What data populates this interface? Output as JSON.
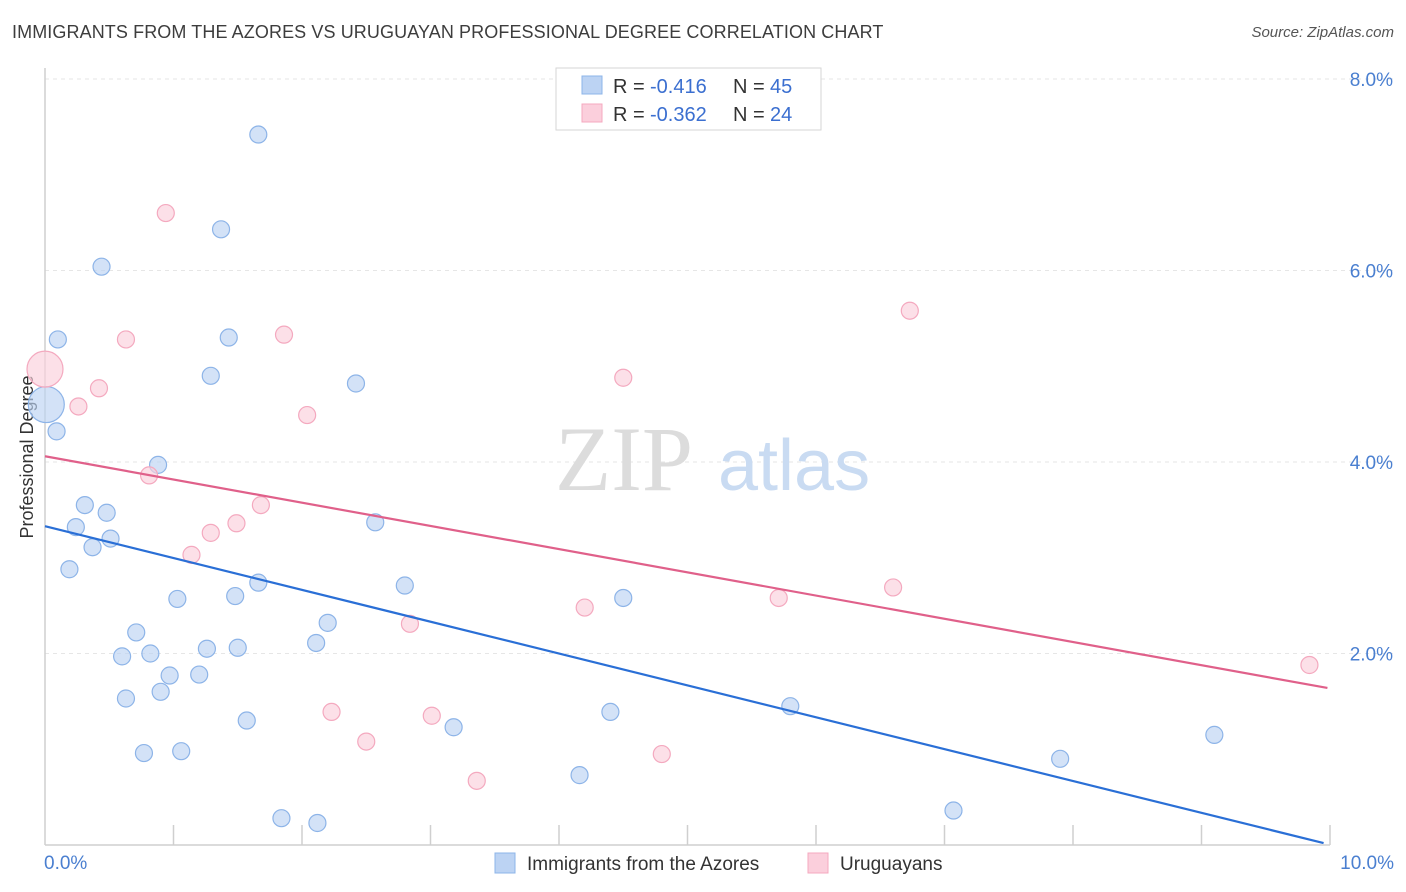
{
  "title": "IMMIGRANTS FROM THE AZORES VS URUGUAYAN PROFESSIONAL DEGREE CORRELATION CHART",
  "source": "Source: ZipAtlas.com",
  "watermark": {
    "zip": "ZIP",
    "atlas": "atlas"
  },
  "chart_data": {
    "type": "scatter",
    "ylabel": "Professional Degree",
    "xlim": [
      0,
      10
    ],
    "ylim": [
      0,
      8
    ],
    "x_tick_labels": [
      "0.0%",
      "10.0%"
    ],
    "y_tick_labels": [
      "2.0%",
      "4.0%",
      "6.0%",
      "8.0%"
    ],
    "y_ticks": [
      2,
      4,
      6,
      8
    ],
    "grid": true,
    "legend_position": "top-center",
    "series": [
      {
        "name": "Immigrants from the Azores",
        "color": "#8db4e8",
        "line_color": "#2a6fd6",
        "r_label": "R =",
        "r_value": "-0.416",
        "n_label": "N =",
        "n_value": "45",
        "trend": {
          "x": [
            0,
            9.95
          ],
          "y": [
            3.33,
            0.02
          ]
        },
        "points": [
          {
            "x": 0.01,
            "y": 4.6,
            "big": true
          },
          {
            "x": 0.1,
            "y": 5.28
          },
          {
            "x": 0.09,
            "y": 4.32
          },
          {
            "x": 0.44,
            "y": 6.04
          },
          {
            "x": 1.66,
            "y": 7.42
          },
          {
            "x": 1.37,
            "y": 6.43
          },
          {
            "x": 1.43,
            "y": 5.3
          },
          {
            "x": 1.29,
            "y": 4.9
          },
          {
            "x": 2.42,
            "y": 4.82
          },
          {
            "x": 0.88,
            "y": 3.97
          },
          {
            "x": 0.31,
            "y": 3.55
          },
          {
            "x": 0.24,
            "y": 3.32
          },
          {
            "x": 0.48,
            "y": 3.47
          },
          {
            "x": 0.51,
            "y": 3.2
          },
          {
            "x": 0.37,
            "y": 3.11
          },
          {
            "x": 0.19,
            "y": 2.88
          },
          {
            "x": 2.57,
            "y": 3.37
          },
          {
            "x": 1.66,
            "y": 2.74
          },
          {
            "x": 1.48,
            "y": 2.6
          },
          {
            "x": 1.03,
            "y": 2.57
          },
          {
            "x": 2.8,
            "y": 2.71
          },
          {
            "x": 4.5,
            "y": 2.58
          },
          {
            "x": 0.71,
            "y": 2.22
          },
          {
            "x": 0.6,
            "y": 1.97
          },
          {
            "x": 0.82,
            "y": 2.0
          },
          {
            "x": 1.26,
            "y": 2.05
          },
          {
            "x": 1.5,
            "y": 2.06
          },
          {
            "x": 2.11,
            "y": 2.11
          },
          {
            "x": 2.2,
            "y": 2.32
          },
          {
            "x": 0.97,
            "y": 1.77
          },
          {
            "x": 1.2,
            "y": 1.78
          },
          {
            "x": 0.9,
            "y": 1.6
          },
          {
            "x": 0.63,
            "y": 1.53
          },
          {
            "x": 1.57,
            "y": 1.3
          },
          {
            "x": 5.8,
            "y": 1.45
          },
          {
            "x": 3.18,
            "y": 1.23
          },
          {
            "x": 4.4,
            "y": 1.39
          },
          {
            "x": 0.77,
            "y": 0.96
          },
          {
            "x": 1.06,
            "y": 0.98
          },
          {
            "x": 4.16,
            "y": 0.73
          },
          {
            "x": 9.1,
            "y": 1.15
          },
          {
            "x": 7.9,
            "y": 0.9
          },
          {
            "x": 1.84,
            "y": 0.28
          },
          {
            "x": 2.12,
            "y": 0.23
          },
          {
            "x": 7.07,
            "y": 0.36
          }
        ]
      },
      {
        "name": "Uruguayans",
        "color": "#f4a9bf",
        "line_color": "#e0608a",
        "r_label": "R =",
        "r_value": "-0.362",
        "n_label": "N =",
        "n_value": "24",
        "trend": {
          "x": [
            0,
            9.98
          ],
          "y": [
            4.06,
            1.64
          ]
        },
        "points": [
          {
            "x": 0.0,
            "y": 4.97,
            "big": true
          },
          {
            "x": 0.94,
            "y": 6.6
          },
          {
            "x": 0.63,
            "y": 5.28
          },
          {
            "x": 1.86,
            "y": 5.33
          },
          {
            "x": 6.73,
            "y": 5.58
          },
          {
            "x": 0.42,
            "y": 4.77
          },
          {
            "x": 0.26,
            "y": 4.58
          },
          {
            "x": 4.5,
            "y": 4.88
          },
          {
            "x": 2.04,
            "y": 4.49
          },
          {
            "x": 0.81,
            "y": 3.86
          },
          {
            "x": 1.68,
            "y": 3.55
          },
          {
            "x": 1.49,
            "y": 3.36
          },
          {
            "x": 1.29,
            "y": 3.26
          },
          {
            "x": 1.14,
            "y": 3.03
          },
          {
            "x": 6.6,
            "y": 2.69
          },
          {
            "x": 5.71,
            "y": 2.58
          },
          {
            "x": 4.2,
            "y": 2.48
          },
          {
            "x": 2.84,
            "y": 2.31
          },
          {
            "x": 9.84,
            "y": 1.88
          },
          {
            "x": 2.23,
            "y": 1.39
          },
          {
            "x": 3.01,
            "y": 1.35
          },
          {
            "x": 2.5,
            "y": 1.08
          },
          {
            "x": 4.8,
            "y": 0.95
          },
          {
            "x": 3.36,
            "y": 0.67
          }
        ]
      }
    ]
  }
}
